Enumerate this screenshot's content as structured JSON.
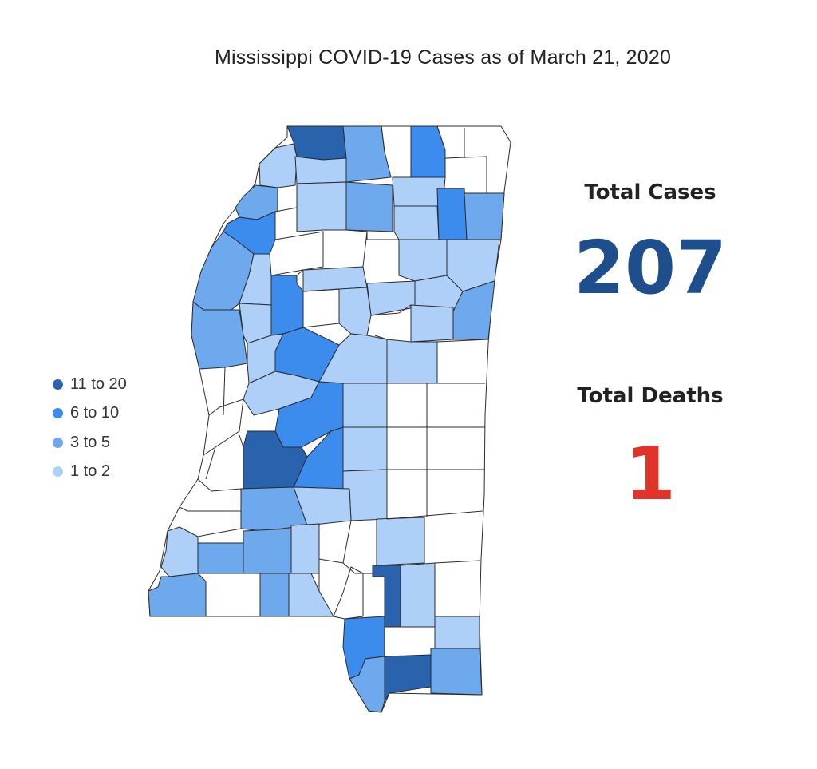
{
  "title": "Mississippi COVID-19 Cases as of March 21, 2020",
  "legend": [
    {
      "label": "11 to 20",
      "color": "#2a63ad"
    },
    {
      "label": "6 to 10",
      "color": "#3b8ced"
    },
    {
      "label": "3 to 5",
      "color": "#6ea9ee"
    },
    {
      "label": "1 to 2",
      "color": "#aed0f8"
    }
  ],
  "stats": {
    "total_cases_label": "Total Cases",
    "total_cases_value": "207",
    "total_deaths_label": "Total Deaths",
    "total_deaths_value": "1"
  },
  "colors": {
    "none": "#ffffff",
    "border": "#2b2b2b",
    "cases_value": "#1f4e8c",
    "deaths_value": "#e0332a"
  }
}
